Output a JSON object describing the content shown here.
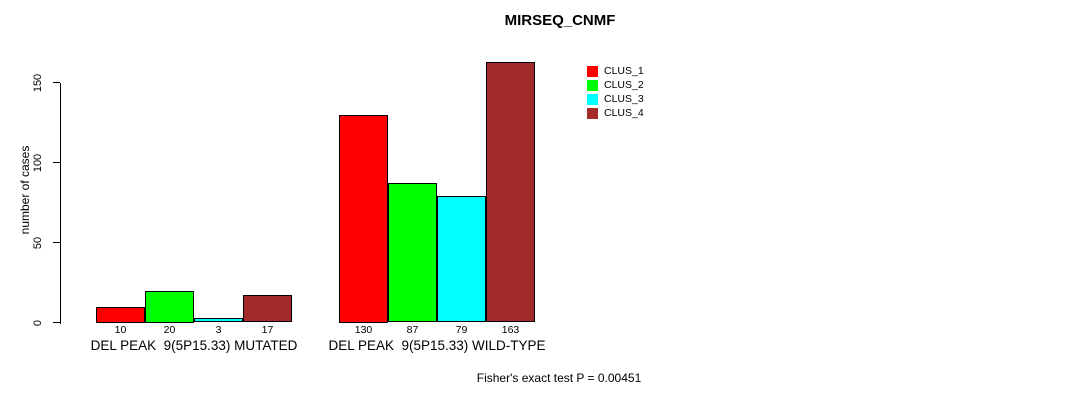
{
  "chart_data": {
    "type": "bar",
    "title": "MIRSEQ_CNMF",
    "ylabel": "number of cases",
    "yticks": [
      0,
      50,
      100,
      150
    ],
    "ylim": [
      0,
      163
    ],
    "categories": [
      "DEL PEAK  9(5P15.33) MUTATED",
      "DEL PEAK  9(5P15.33) WILD-TYPE"
    ],
    "series": [
      {
        "name": "CLUS_1",
        "color": "#ff0000",
        "values": [
          10,
          130
        ]
      },
      {
        "name": "CLUS_2",
        "color": "#00ff00",
        "values": [
          20,
          87
        ]
      },
      {
        "name": "CLUS_3",
        "color": "#00ffff",
        "values": [
          3,
          79
        ]
      },
      {
        "name": "CLUS_4",
        "color": "#a52a2a",
        "values": [
          17,
          163
        ]
      }
    ],
    "bar_value_labels": [
      [
        10,
        20,
        3,
        17
      ],
      [
        130,
        87,
        79,
        163
      ]
    ],
    "annotation": "Fisher's exact test P = 0.00451",
    "legend_position": "top-right",
    "grid": false,
    "bar_border_color": "#000000",
    "text_color": "#000000",
    "background_color": "#ffffff"
  }
}
